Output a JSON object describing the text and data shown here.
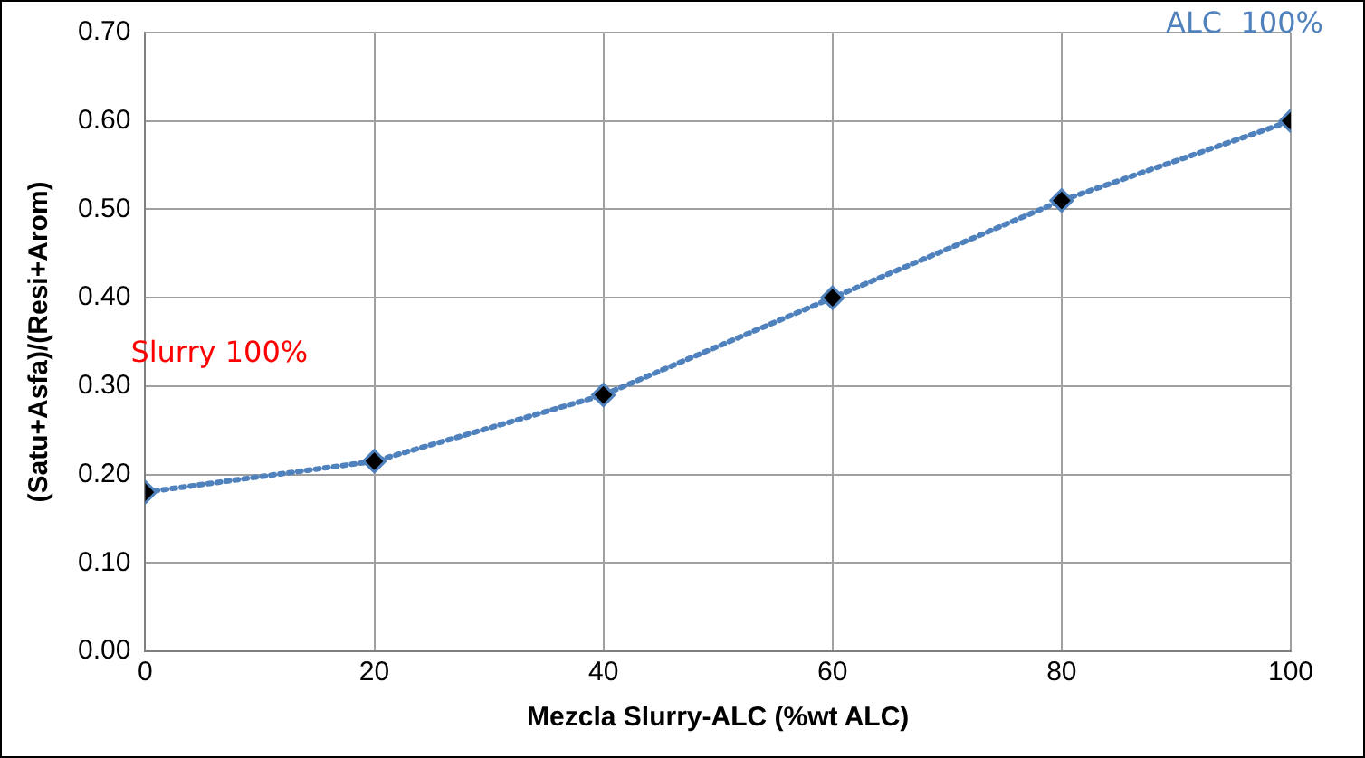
{
  "chart_data": {
    "type": "line",
    "xlabel": "Mezcla Slurry-ALC (%wt ALC)",
    "ylabel": "(Satu+Asfa)/(Resi+Arom)",
    "x": [
      0,
      20,
      40,
      60,
      80,
      100
    ],
    "series": [
      {
        "color": "#4f81bd",
        "values": [
          0.18,
          0.215,
          0.29,
          0.4,
          0.51,
          0.6
        ]
      }
    ],
    "xlim": [
      0,
      100
    ],
    "xticks": [
      0,
      20,
      40,
      60,
      80,
      100
    ],
    "ylim": [
      0,
      0.7
    ],
    "yticks": [
      {
        "value": 0,
        "label": "0.00"
      },
      {
        "value": 0.1,
        "label": "0.10"
      },
      {
        "value": 0.2,
        "label": "0.20"
      },
      {
        "value": 0.3,
        "label": "0.30"
      },
      {
        "value": 0.4,
        "label": "0.40"
      },
      {
        "value": 0.5,
        "label": "0.50"
      },
      {
        "value": 0.6,
        "label": "0.60"
      },
      {
        "value": 0.7,
        "label": "0.70"
      }
    ],
    "grid": true,
    "legend": false,
    "marker": "diamond",
    "line_style": "dotted",
    "annotations": [
      "Slurry 100%",
      "ALC  100%"
    ]
  }
}
